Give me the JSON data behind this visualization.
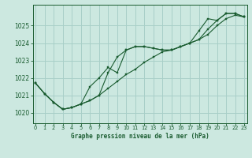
{
  "title": "Graphe pression niveau de la mer (hPa)",
  "background_color": "#cce8e0",
  "grid_color": "#a8cfc8",
  "line_color": "#1a5c30",
  "x_ticks": [
    0,
    1,
    2,
    3,
    4,
    5,
    6,
    7,
    8,
    9,
    10,
    11,
    12,
    13,
    14,
    15,
    16,
    17,
    18,
    19,
    20,
    21,
    22,
    23
  ],
  "y_ticks": [
    1020,
    1021,
    1022,
    1023,
    1024,
    1025
  ],
  "ylim": [
    1019.4,
    1026.2
  ],
  "xlim": [
    -0.3,
    23.3
  ],
  "series": [
    [
      1021.7,
      1021.1,
      1020.6,
      1020.2,
      1020.3,
      1020.5,
      1020.7,
      1021.0,
      1021.4,
      1021.8,
      1022.2,
      1022.5,
      1022.9,
      1023.2,
      1023.5,
      1023.6,
      1023.8,
      1024.0,
      1024.2,
      1024.5,
      1025.0,
      1025.4,
      1025.6,
      1025.5
    ],
    [
      1021.7,
      1021.1,
      1020.6,
      1020.2,
      1020.3,
      1020.5,
      1020.7,
      1021.0,
      1022.3,
      1023.2,
      1023.6,
      1023.8,
      1023.8,
      1023.7,
      1023.6,
      1023.6,
      1023.8,
      1024.0,
      1024.2,
      1024.8,
      1025.3,
      1025.7,
      1025.7,
      1025.5
    ],
    [
      1021.7,
      1021.1,
      1020.6,
      1020.2,
      1020.3,
      1020.5,
      1021.5,
      1022.0,
      1022.6,
      1022.3,
      1023.6,
      1023.8,
      1023.8,
      1023.7,
      1023.6,
      1023.6,
      1023.8,
      1024.0,
      1024.7,
      1025.4,
      1025.3,
      1025.7,
      1025.7,
      1025.5
    ]
  ]
}
